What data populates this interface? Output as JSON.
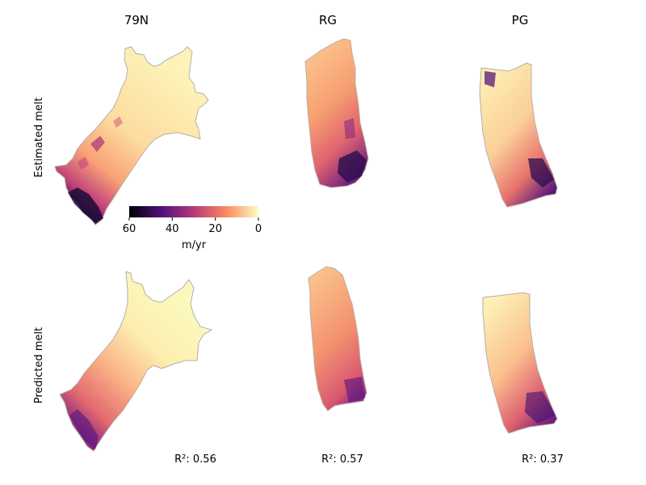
{
  "chart_data": {
    "type": "heatmap",
    "columns": [
      "79N",
      "RG",
      "PG"
    ],
    "rows": [
      "Estimated melt",
      "Predicted melt"
    ],
    "colorbar": {
      "colormap": "magma",
      "label": "m/yr",
      "ticks": [
        "60",
        "40",
        "20",
        "0"
      ],
      "range": [
        60,
        0
      ]
    },
    "r2": [
      {
        "glacier": "79N",
        "label": "R²: 0.56",
        "value": 0.56
      },
      {
        "glacier": "RG",
        "label": "R²: 0.57",
        "value": 0.57
      },
      {
        "glacier": "PG",
        "label": "R²: 0.37",
        "value": 0.37
      }
    ],
    "colors": {
      "magma_0": "#000004",
      "magma_25": "#51127c",
      "magma_50": "#b73779",
      "magma_75": "#fc8961",
      "magma_100": "#fcfdbf",
      "outline": "#a8a8a0"
    }
  }
}
